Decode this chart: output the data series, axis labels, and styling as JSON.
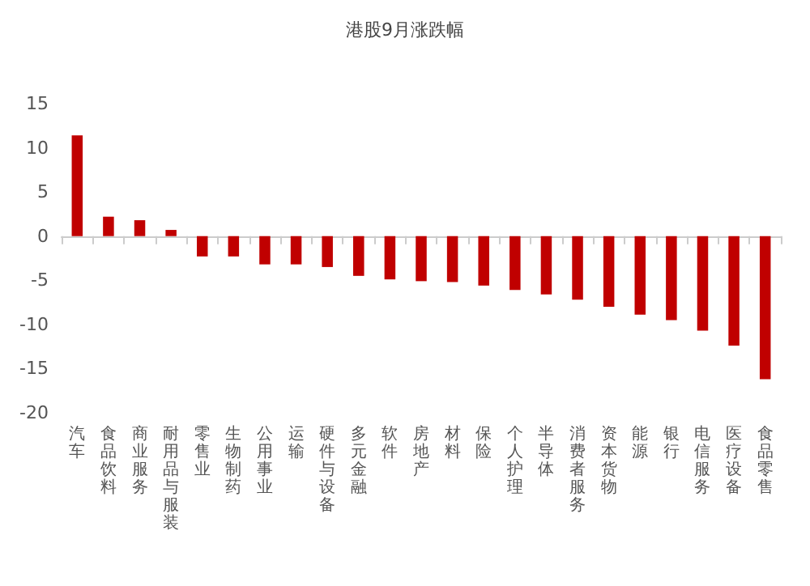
{
  "chart_data": {
    "type": "bar",
    "title": "港股9月涨跌幅",
    "categories": [
      "汽车",
      "食品饮料",
      "商业服务",
      "耐用品与服装",
      "零售业",
      "生物制药",
      "公用事业",
      "运输",
      "硬件与设备",
      "多元金融",
      "软件",
      "房地产",
      "材料",
      "保险",
      "个人护理",
      "半导体",
      "消费者服务",
      "资本货物",
      "能源",
      "银行",
      "电信服务",
      "医疗设备",
      "食品零售"
    ],
    "values": [
      11.4,
      2.2,
      1.8,
      0.7,
      -2.3,
      -2.3,
      -3.2,
      -3.2,
      -3.5,
      -4.5,
      -4.9,
      -5.1,
      -5.2,
      -5.6,
      -6.1,
      -6.6,
      -7.2,
      -8.0,
      -8.9,
      -9.5,
      -10.7,
      -12.4,
      -16.2
    ],
    "color": "#c00000",
    "ylim": [
      -20,
      15
    ],
    "yticks": [
      -20,
      -15,
      -10,
      -5,
      0,
      5,
      10,
      15
    ]
  }
}
